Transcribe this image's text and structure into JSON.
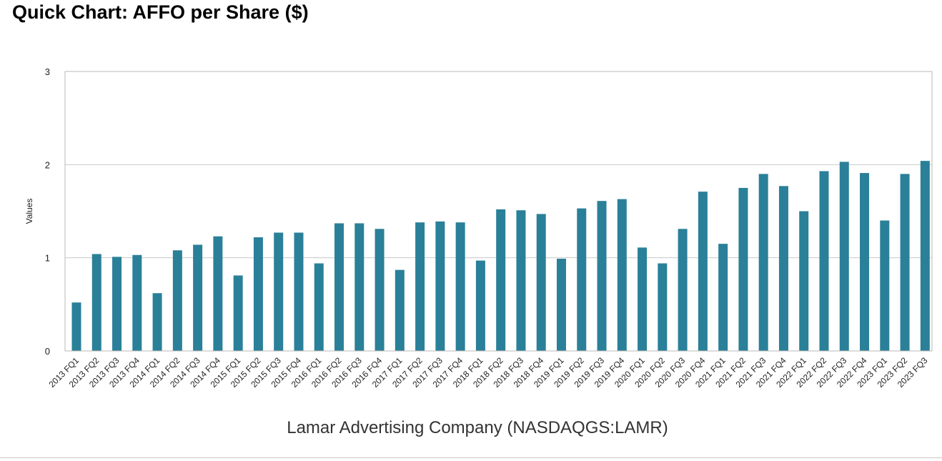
{
  "page": {
    "title": "Quick Chart: AFFO per Share ($)"
  },
  "chart_data": {
    "type": "bar",
    "title": "Quick Chart: AFFO per Share ($)",
    "subtitle": "Lamar Advertising Company (NASDAQGS:LAMR)",
    "xlabel": "",
    "ylabel": "Values",
    "ylim": [
      0,
      3
    ],
    "yticks": [
      "0",
      "1",
      "2",
      "3"
    ],
    "grid": true,
    "legend": "none",
    "bar_color": "#2a8098",
    "categories": [
      "2013 FQ1",
      "2013 FQ2",
      "2013 FQ3",
      "2013 FQ4",
      "2014 FQ1",
      "2014 FQ2",
      "2014 FQ3",
      "2014 FQ4",
      "2015 FQ1",
      "2015 FQ2",
      "2015 FQ3",
      "2015 FQ4",
      "2016 FQ1",
      "2016 FQ2",
      "2016 FQ3",
      "2016 FQ4",
      "2017 FQ1",
      "2017 FQ2",
      "2017 FQ3",
      "2017 FQ4",
      "2018 FQ1",
      "2018 FQ2",
      "2018 FQ3",
      "2018 FQ4",
      "2019 FQ1",
      "2019 FQ2",
      "2019 FQ3",
      "2019 FQ4",
      "2020 FQ1",
      "2020 FQ2",
      "2020 FQ3",
      "2020 FQ4",
      "2021 FQ1",
      "2021 FQ2",
      "2021 FQ3",
      "2021 FQ4",
      "2022 FQ1",
      "2022 FQ2",
      "2022 FQ3",
      "2022 FQ4",
      "2023 FQ1",
      "2023 FQ2",
      "2023 FQ3"
    ],
    "values": [
      0.52,
      1.04,
      1.01,
      1.03,
      0.62,
      1.08,
      1.14,
      1.23,
      0.81,
      1.22,
      1.27,
      1.27,
      0.94,
      1.37,
      1.37,
      1.31,
      0.87,
      1.38,
      1.39,
      1.38,
      0.97,
      1.52,
      1.51,
      1.47,
      0.99,
      1.53,
      1.61,
      1.63,
      1.11,
      0.94,
      1.31,
      1.71,
      1.15,
      1.75,
      1.9,
      1.77,
      1.5,
      1.93,
      2.03,
      1.91,
      1.4,
      1.9,
      2.04
    ]
  }
}
